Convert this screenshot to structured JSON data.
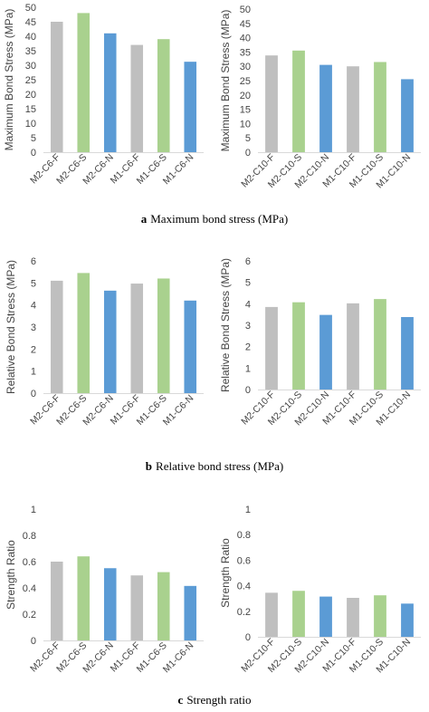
{
  "colors": {
    "F": "#BFBFBF",
    "S": "#A9D18E",
    "N": "#5B9BD5",
    "axis": "#D9D9D9"
  },
  "captions": [
    {
      "letter": "a",
      "text": "Maximum bond stress (MPa)"
    },
    {
      "letter": "b",
      "text": "Relative bond stress (MPa)"
    },
    {
      "letter": "c",
      "text": "Strength ratio"
    }
  ],
  "chart_data": [
    {
      "type": "bar",
      "ylabel": "Maximum Bond Stress (MPa)",
      "ylim": [
        0,
        50
      ],
      "ystep": 5,
      "categories": [
        "M2-C6-F",
        "M2-C6-S",
        "M2-C6-N",
        "M1-C6-F",
        "M1-C6-S",
        "M1-C6-N"
      ],
      "values": [
        45,
        48,
        41,
        37,
        39,
        31.2
      ]
    },
    {
      "type": "bar",
      "ylabel": "Maximum Bond Stress (MPa)",
      "ylim": [
        0,
        50
      ],
      "ystep": 5,
      "categories": [
        "M2-C10-F",
        "M2-C10-S",
        "M2-C10-N",
        "M1-C10-F",
        "M1-C10-S",
        "M1-C10-N"
      ],
      "values": [
        33.8,
        35.5,
        30.5,
        30,
        31.5,
        25.5
      ]
    },
    {
      "type": "bar",
      "ylabel": "Relative Bond Stress (MPa)",
      "ylim": [
        0,
        6
      ],
      "ystep": 1,
      "categories": [
        "M2-C6-F",
        "M2-C6-S",
        "M2-C6-N",
        "M1-C6-F",
        "M1-C6-S",
        "M1-C6-N"
      ],
      "values": [
        5.1,
        5.45,
        4.65,
        4.97,
        5.2,
        4.2
      ]
    },
    {
      "type": "bar",
      "ylabel": "Relative Bond Stress (MPa)",
      "ylim": [
        0,
        6
      ],
      "ystep": 1,
      "categories": [
        "M2-C10-F",
        "M2-C10-S",
        "M2-C10-N",
        "M1-C10-F",
        "M1-C10-S",
        "M1-C10-N"
      ],
      "values": [
        3.85,
        4.07,
        3.48,
        4.02,
        4.22,
        3.38
      ]
    },
    {
      "type": "bar",
      "ylabel": "Strength Ratio",
      "ylim": [
        0,
        1
      ],
      "ystep": 0.2,
      "categories": [
        "M2-C6-F",
        "M2-C6-S",
        "M2-C6-N",
        "M1-C6-F",
        "M1-C6-S",
        "M1-C6-N"
      ],
      "values": [
        0.6,
        0.64,
        0.55,
        0.495,
        0.52,
        0.415
      ]
    },
    {
      "type": "bar",
      "ylabel": "Strength Ratio",
      "ylim": [
        0,
        1
      ],
      "ystep": 0.2,
      "categories": [
        "M2-C10-F",
        "M2-C10-S",
        "M2-C10-N",
        "M1-C10-F",
        "M1-C10-S",
        "M1-C10-N"
      ],
      "values": [
        0.345,
        0.36,
        0.315,
        0.305,
        0.325,
        0.26
      ]
    }
  ]
}
